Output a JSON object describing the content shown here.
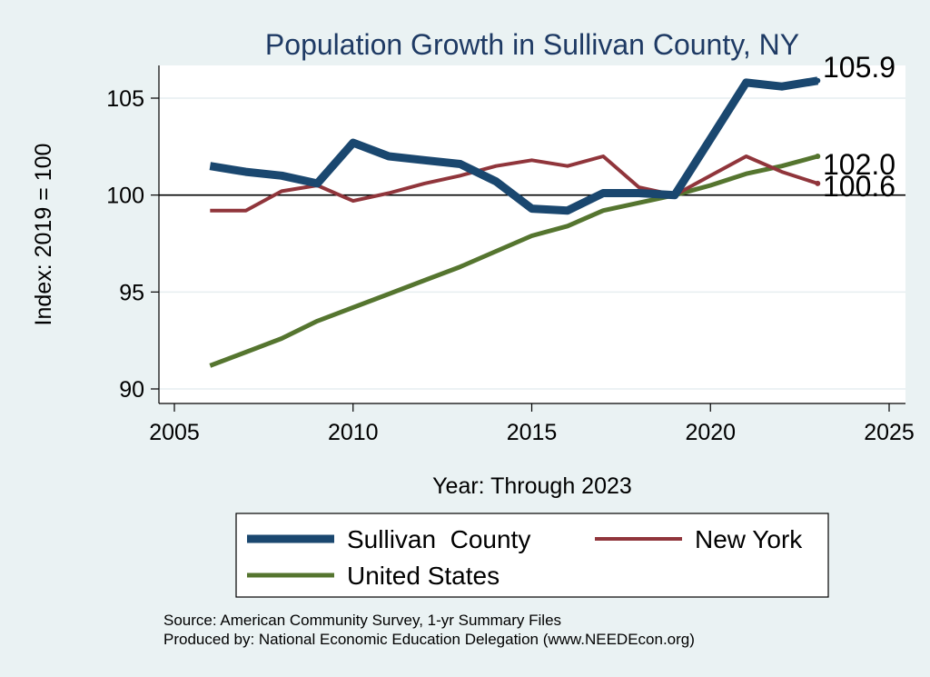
{
  "chart_data": {
    "type": "line",
    "title": "Population Growth in Sullivan County, NY",
    "xlabel": "Year: Through 2023",
    "ylabel": "Index: 2019 = 100",
    "xlim": [
      2005,
      2025
    ],
    "ylim": [
      90,
      105
    ],
    "xticks": [
      "2005",
      "2010",
      "2015",
      "2020",
      "2025"
    ],
    "yticks": [
      "90",
      "95",
      "100",
      "105"
    ],
    "reference_line": 100,
    "grid": "horizontal",
    "legend_position": "bottom",
    "x": [
      2006,
      2007,
      2008,
      2009,
      2010,
      2011,
      2012,
      2013,
      2014,
      2015,
      2016,
      2017,
      2018,
      2019,
      2020,
      2021,
      2022,
      2023
    ],
    "series": [
      {
        "name": "Sullivan  County",
        "color": "#1a476f",
        "values": [
          101.5,
          101.2,
          101.0,
          100.6,
          102.7,
          102.0,
          101.8,
          101.6,
          100.7,
          99.3,
          99.2,
          100.1,
          100.1,
          100.0,
          102.9,
          105.8,
          105.6,
          105.9
        ],
        "end_label": "105.9"
      },
      {
        "name": "New York",
        "color": "#90353b",
        "values": [
          99.2,
          99.2,
          100.2,
          100.5,
          99.7,
          100.1,
          100.6,
          101.0,
          101.5,
          101.8,
          101.5,
          102.0,
          100.4,
          100.0,
          101.0,
          102.0,
          101.2,
          100.6
        ],
        "end_label": "100.6"
      },
      {
        "name": "United States",
        "color": "#55752f",
        "values": [
          91.2,
          91.9,
          92.6,
          93.5,
          94.2,
          94.9,
          95.6,
          96.3,
          97.1,
          97.9,
          98.4,
          99.2,
          99.6,
          100.0,
          100.5,
          101.1,
          101.5,
          102.0
        ],
        "end_label": "102.0"
      }
    ]
  },
  "footer": {
    "source": "Source: American Community Survey, 1-yr Summary Files",
    "produced_by": "Produced by: National Economic Education Delegation (www.NEEDEcon.org)"
  }
}
